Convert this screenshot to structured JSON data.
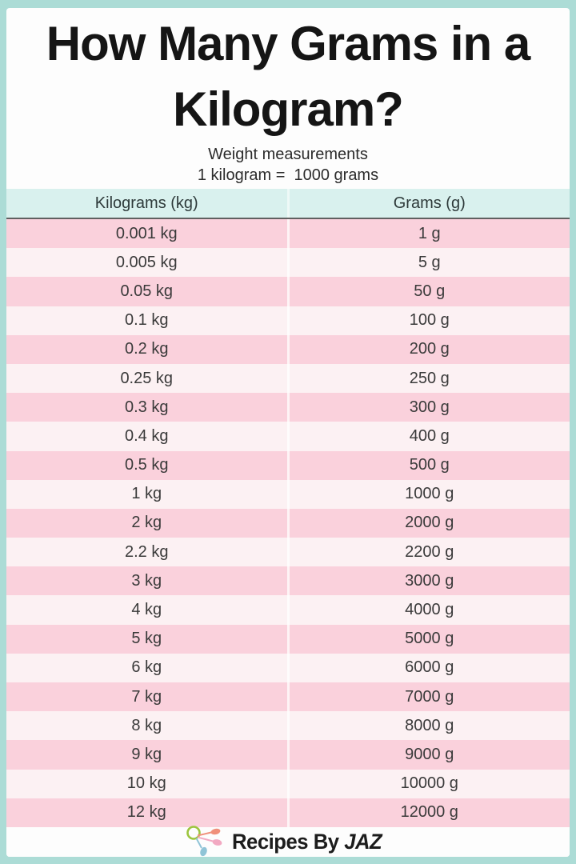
{
  "header": {
    "title": "How Many Grams in a Kilogram?",
    "subtitle": "Weight measurements",
    "equation": "1 kilogram =  1000 grams"
  },
  "table": {
    "columns": [
      "Kilograms (kg)",
      "Grams (g)"
    ],
    "rows": [
      [
        "0.001 kg",
        "1 g"
      ],
      [
        "0.005 kg",
        "5 g"
      ],
      [
        "0.05 kg",
        "50 g"
      ],
      [
        "0.1 kg",
        "100 g"
      ],
      [
        "0.2 kg",
        "200 g"
      ],
      [
        "0.25 kg",
        "250 g"
      ],
      [
        "0.3 kg",
        "300 g"
      ],
      [
        "0.4 kg",
        "400 g"
      ],
      [
        "0.5 kg",
        "500 g"
      ],
      [
        "1 kg",
        "1000 g"
      ],
      [
        "2 kg",
        "2000 g"
      ],
      [
        "2.2 kg",
        "2200 g"
      ],
      [
        "3 kg",
        "3000 g"
      ],
      [
        "4 kg",
        "4000 g"
      ],
      [
        "5 kg",
        "5000 g"
      ],
      [
        "6 kg",
        "6000 g"
      ],
      [
        "7 kg",
        "7000 g"
      ],
      [
        "8 kg",
        "8000 g"
      ],
      [
        "9 kg",
        "9000 g"
      ],
      [
        "10 kg",
        "10000 g"
      ],
      [
        "12 kg",
        "12000 g"
      ]
    ]
  },
  "footer": {
    "brand_prefix": "Recipes By",
    "brand_suffix": "JAZ",
    "logo_icon": "measuring-spoons-icon"
  },
  "colors": {
    "frame_teal": "#ACDCD6",
    "card": "#FDFDFD",
    "header_bg": "#D9F1EE",
    "header_rule": "#606060",
    "row_pink": "#FAD1DC",
    "row_light": "#FCF1F3",
    "text_dark": "#3A3A3A",
    "title": "#151515",
    "logo_ring": "#9CC53E",
    "logo_spoon_orange": "#F0907B",
    "logo_spoon_pink": "#F2A9C2",
    "logo_spoon_blue": "#90C4D7"
  },
  "chart_data": {
    "type": "table",
    "title": "How Many Grams in a Kilogram?",
    "subtitle": "Weight measurements",
    "conversion_rule": "1 kilogram = 1000 grams",
    "columns": [
      "Kilograms (kg)",
      "Grams (g)"
    ],
    "kilograms": [
      0.001,
      0.005,
      0.05,
      0.1,
      0.2,
      0.25,
      0.3,
      0.4,
      0.5,
      1,
      2,
      2.2,
      3,
      4,
      5,
      6,
      7,
      8,
      9,
      10,
      12
    ],
    "grams": [
      1,
      5,
      50,
      100,
      200,
      250,
      300,
      400,
      500,
      1000,
      2000,
      2200,
      3000,
      4000,
      5000,
      6000,
      7000,
      8000,
      9000,
      10000,
      12000
    ]
  }
}
